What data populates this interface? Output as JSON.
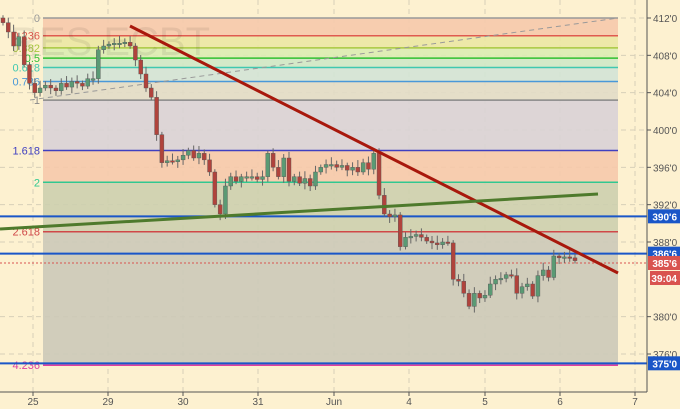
{
  "watermark": "RES  ECBT",
  "chart_data": {
    "type": "candlestick",
    "price_range": [
      374.5,
      413.5
    ],
    "y_ticks": [
      "412'0",
      "408'0",
      "404'0",
      "400'0",
      "396'0",
      "392'0",
      "388'0",
      "380'0",
      "376'0"
    ],
    "y_tick_values": [
      412,
      408,
      404,
      400,
      396,
      392,
      388,
      380,
      376
    ],
    "x_ticks": [
      "25",
      "29",
      "30",
      "31",
      "Jun",
      "4",
      "5",
      "6",
      "7"
    ],
    "closes": [
      411.5,
      410.5,
      409,
      410,
      407,
      405,
      404,
      404.5,
      404.8,
      404.5,
      404.2,
      405,
      404.6,
      405.2,
      405,
      404.7,
      405.5,
      405.5,
      408.6,
      409,
      409.2,
      409.3,
      409.3,
      409.4,
      409.0,
      407.5,
      406,
      404.5,
      403.5,
      399.5,
      396.5,
      396.7,
      396.6,
      396.8,
      397.3,
      397.8,
      397,
      397.5,
      396.8,
      395.5,
      392,
      391,
      394,
      395,
      394.5,
      395,
      395,
      395,
      394.7,
      395,
      397.5,
      396,
      395,
      397,
      394.5,
      395,
      394.3,
      394.8,
      394,
      395.5,
      396,
      396.3,
      396.3,
      396,
      396.2,
      395.7,
      396,
      395.5,
      396.5,
      395.8,
      397.5,
      393,
      391,
      390.7,
      390.9,
      387.5,
      388.5,
      388.6,
      388.8,
      388.5,
      388.1,
      387.9,
      387.7,
      388,
      387.9,
      384,
      383.8,
      382.5,
      381.1,
      382.5,
      382.0,
      382.3,
      383.5,
      384,
      384.1,
      384.5,
      384.4,
      382.5,
      383.2,
      383.5,
      382.2,
      384.4,
      385,
      384.2,
      386.5,
      386.3,
      386.4,
      386.3,
      386.0
    ],
    "fib_levels": [
      {
        "label": "0",
        "value": 412,
        "color": "#999999",
        "fill": "#f6c9ab"
      },
      {
        "label": "0.236",
        "value": 410.1,
        "color": "#e05a50",
        "fill": "#ebe7a3"
      },
      {
        "label": "0.382",
        "value": 408.8,
        "color": "#a8c840",
        "fill": "#dcecb2"
      },
      {
        "label": "0.5",
        "value": 407.7,
        "color": "#30c030",
        "fill": "#cfe8c6"
      },
      {
        "label": "0.618",
        "value": 406.7,
        "color": "#40c8b0",
        "fill": "#d3e3d6"
      },
      {
        "label": "0.786",
        "value": 405.2,
        "color": "#4a98d8",
        "fill": "#e2dcc6"
      },
      {
        "label": "1",
        "value": 403.2,
        "color": "#888888",
        "fill": "#d9d1d6"
      },
      {
        "label": "1.618",
        "value": 397.8,
        "color": "#4040c0",
        "fill": "#f6c9ab"
      },
      {
        "label": "2",
        "value": 394.4,
        "color": "#30c890",
        "fill": "#cdcfae"
      },
      {
        "label": "2.618",
        "value": 389.1,
        "color": "#d04848",
        "fill": "#ccc9b8"
      },
      {
        "label": "4.236",
        "value": 374.8,
        "color": "#e040a0",
        "fill": null
      }
    ],
    "horizontal_levels": [
      {
        "label": "390'6",
        "value": 390.75,
        "color": "#1a56c8"
      },
      {
        "label": "386'6",
        "value": 386.75,
        "color": "#1a56c8"
      },
      {
        "label": "375'0",
        "value": 375.0,
        "color": "#1a56c8"
      }
    ],
    "last_price": {
      "label": "385'6",
      "value": 385.75,
      "color": "#d9534f"
    },
    "countdown": "39:04",
    "up_color": "#5a9a74",
    "down_color": "#b0433c"
  }
}
